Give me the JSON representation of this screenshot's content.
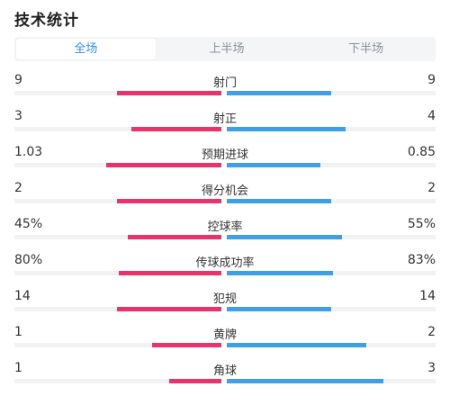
{
  "header": {
    "title": "技术统计"
  },
  "tabs": [
    {
      "label": "全场",
      "active": true
    },
    {
      "label": "上半场",
      "active": false
    },
    {
      "label": "下半场",
      "active": false
    }
  ],
  "colors": {
    "home": "#e8336b",
    "away": "#3d9fe6",
    "active_tab": "#2f8cf0"
  },
  "stats": [
    {
      "label": "射门",
      "home": "9",
      "away": "9",
      "home_fraction": 0.5,
      "away_fraction": 0.5
    },
    {
      "label": "射正",
      "home": "3",
      "away": "4",
      "home_fraction": 0.43,
      "away_fraction": 0.57
    },
    {
      "label": "预期进球",
      "home": "1.03",
      "away": "0.85",
      "home_fraction": 0.55,
      "away_fraction": 0.45
    },
    {
      "label": "得分机会",
      "home": "2",
      "away": "2",
      "home_fraction": 0.5,
      "away_fraction": 0.5
    },
    {
      "label": "控球率",
      "home": "45%",
      "away": "55%",
      "home_fraction": 0.45,
      "away_fraction": 0.55
    },
    {
      "label": "传球成功率",
      "home": "80%",
      "away": "83%",
      "home_fraction": 0.49,
      "away_fraction": 0.51
    },
    {
      "label": "犯规",
      "home": "14",
      "away": "14",
      "home_fraction": 0.5,
      "away_fraction": 0.5
    },
    {
      "label": "黄牌",
      "home": "1",
      "away": "2",
      "home_fraction": 0.33,
      "away_fraction": 0.67
    },
    {
      "label": "角球",
      "home": "1",
      "away": "3",
      "home_fraction": 0.25,
      "away_fraction": 0.75
    }
  ]
}
